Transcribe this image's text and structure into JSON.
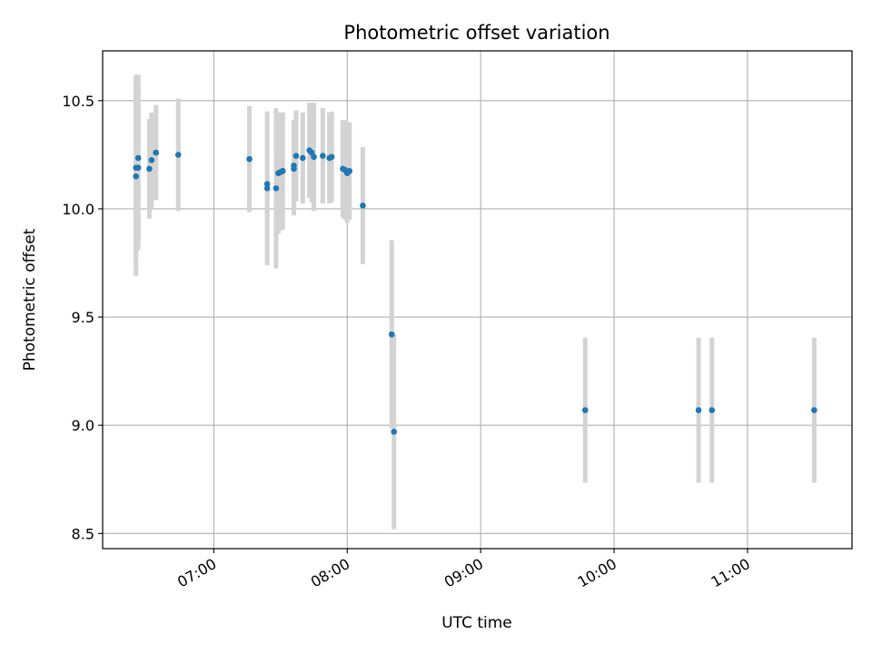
{
  "chart_data": {
    "type": "scatter",
    "title": "Photometric offset variation",
    "xlabel": "UTC time",
    "ylabel": "Photometric offset",
    "xlim": [
      "06:10",
      "11:47"
    ],
    "ylim": [
      8.43,
      10.73
    ],
    "x_ticks": [
      "07:00",
      "08:00",
      "09:00",
      "10:00",
      "11:00"
    ],
    "y_ticks": [
      8.5,
      9.0,
      9.5,
      10.0,
      10.5
    ],
    "grid": true,
    "colors": {
      "point": "#1f77b4",
      "errorbar": "#d3d3d3",
      "grid": "#b0b0b0"
    },
    "points": [
      {
        "x": "06:25",
        "y": 10.15,
        "err": 0.46
      },
      {
        "x": "06:25",
        "y": 10.19,
        "err": 0.43
      },
      {
        "x": "06:26",
        "y": 10.235,
        "err": 0.385
      },
      {
        "x": "06:26",
        "y": 10.19,
        "err": 0.38
      },
      {
        "x": "06:31",
        "y": 10.185,
        "err": 0.23
      },
      {
        "x": "06:32",
        "y": 10.225,
        "err": 0.22
      },
      {
        "x": "06:34",
        "y": 10.26,
        "err": 0.22
      },
      {
        "x": "06:44",
        "y": 10.25,
        "err": 0.26
      },
      {
        "x": "07:16",
        "y": 10.23,
        "err": 0.245
      },
      {
        "x": "07:24",
        "y": 10.115,
        "err": 0.335
      },
      {
        "x": "07:24",
        "y": 10.095,
        "err": 0.355
      },
      {
        "x": "07:28",
        "y": 10.095,
        "err": 0.37
      },
      {
        "x": "07:29",
        "y": 10.165,
        "err": 0.28
      },
      {
        "x": "07:30",
        "y": 10.17,
        "err": 0.27
      },
      {
        "x": "07:31",
        "y": 10.175,
        "err": 0.27
      },
      {
        "x": "07:36",
        "y": 10.185,
        "err": 0.215
      },
      {
        "x": "07:36",
        "y": 10.2,
        "err": 0.21
      },
      {
        "x": "07:37",
        "y": 10.245,
        "err": 0.21
      },
      {
        "x": "07:40",
        "y": 10.235,
        "err": 0.21
      },
      {
        "x": "07:43",
        "y": 10.27,
        "err": 0.22
      },
      {
        "x": "07:44",
        "y": 10.26,
        "err": 0.23
      },
      {
        "x": "07:45",
        "y": 10.24,
        "err": 0.25
      },
      {
        "x": "07:49",
        "y": 10.245,
        "err": 0.22
      },
      {
        "x": "07:52",
        "y": 10.235,
        "err": 0.21
      },
      {
        "x": "07:53",
        "y": 10.24,
        "err": 0.21
      },
      {
        "x": "07:58",
        "y": 10.185,
        "err": 0.225
      },
      {
        "x": "07:59",
        "y": 10.18,
        "err": 0.23
      },
      {
        "x": "08:00",
        "y": 10.165,
        "err": 0.23
      },
      {
        "x": "08:01",
        "y": 10.175,
        "err": 0.225
      },
      {
        "x": "08:07",
        "y": 10.015,
        "err": 0.27
      },
      {
        "x": "08:20",
        "y": 9.42,
        "err": 0.435
      },
      {
        "x": "08:21",
        "y": 8.97,
        "err": 0.45
      },
      {
        "x": "09:47",
        "y": 9.07,
        "err": 0.335
      },
      {
        "x": "10:38",
        "y": 9.07,
        "err": 0.335
      },
      {
        "x": "10:44",
        "y": 9.07,
        "err": 0.335
      },
      {
        "x": "11:30",
        "y": 9.07,
        "err": 0.335
      }
    ]
  }
}
